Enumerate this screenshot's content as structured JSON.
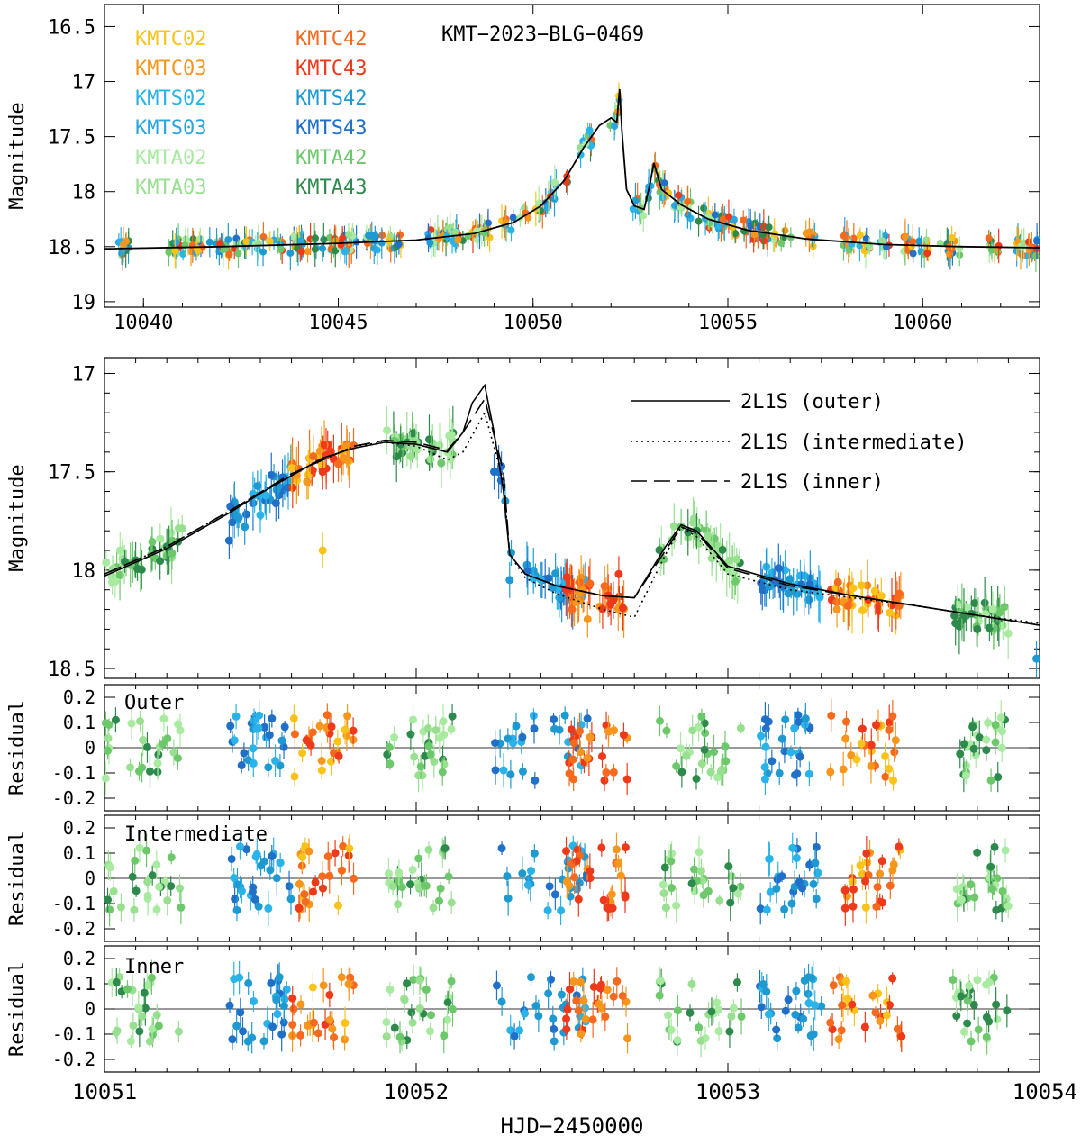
{
  "chart_data": [
    {
      "type": "scatter",
      "panel": "overview",
      "title": "KMT−2023−BLG−0469",
      "ylabel": "Magnitude",
      "xlim": [
        10039,
        10063
      ],
      "ylim_inverted": [
        16.3,
        19.05
      ],
      "x_ticks": [
        10040,
        10045,
        10050,
        10055,
        10060
      ],
      "y_ticks": [
        16.5,
        17,
        17.5,
        18,
        18.5,
        19
      ],
      "legend": [
        {
          "name": "KMTC02",
          "color": "#F9C31A"
        },
        {
          "name": "KMTC03",
          "color": "#F7961C"
        },
        {
          "name": "KMTS02",
          "color": "#2AB3E8"
        },
        {
          "name": "KMTS03",
          "color": "#29A6E0"
        },
        {
          "name": "KMTA02",
          "color": "#A8EAA0"
        },
        {
          "name": "KMTA03",
          "color": "#98E090"
        },
        {
          "name": "KMTC42",
          "color": "#F56A1E"
        },
        {
          "name": "KMTC43",
          "color": "#EE3A1A"
        },
        {
          "name": "KMTS42",
          "color": "#1F9AD0"
        },
        {
          "name": "KMTS43",
          "color": "#2070C8"
        },
        {
          "name": "KMTA42",
          "color": "#6CC86A"
        },
        {
          "name": "KMTA43",
          "color": "#2E8A4C"
        }
      ],
      "model_outer": {
        "x": [
          10039,
          10042,
          10045,
          10047,
          10048.5,
          10049.5,
          10050.2,
          10050.8,
          10051.3,
          10051.7,
          10052.0,
          10052.15,
          10052.22,
          10052.28,
          10052.4,
          10052.6,
          10052.85,
          10053.0,
          10053.1,
          10053.3,
          10053.8,
          10054.5,
          10055.5,
          10057,
          10059,
          10061,
          10063
        ],
        "y": [
          18.52,
          18.5,
          18.47,
          18.44,
          18.38,
          18.28,
          18.13,
          17.9,
          17.6,
          17.4,
          17.33,
          17.37,
          17.07,
          17.45,
          17.98,
          18.13,
          18.16,
          17.93,
          17.74,
          17.98,
          18.12,
          18.25,
          18.35,
          18.43,
          18.48,
          18.5,
          18.51
        ]
      }
    },
    {
      "type": "scatter",
      "panel": "zoom",
      "ylabel": "Magnitude",
      "xlim": [
        10051,
        10054
      ],
      "ylim_inverted": [
        16.92,
        18.55
      ],
      "y_ticks": [
        17,
        17.5,
        18,
        18.5
      ],
      "legend_lines": [
        {
          "label": "2L1S (outer)",
          "style": "solid"
        },
        {
          "label": "2L1S (intermediate)",
          "style": "dotted"
        },
        {
          "label": "2L1S (inner)",
          "style": "dashed"
        }
      ],
      "series": [
        {
          "name": "2L1S (outer)",
          "x": [
            10051.0,
            10051.1,
            10051.2,
            10051.3,
            10051.4,
            10051.5,
            10051.6,
            10051.7,
            10051.8,
            10051.9,
            10052.0,
            10052.1,
            10052.15,
            10052.18,
            10052.22,
            10052.25,
            10052.28,
            10052.3,
            10052.35,
            10052.45,
            10052.6,
            10052.7,
            10052.8,
            10052.85,
            10052.9,
            10053.0,
            10053.2,
            10053.4,
            10053.6,
            10053.8,
            10054.0
          ],
          "y": [
            18.03,
            17.96,
            17.89,
            17.8,
            17.71,
            17.61,
            17.52,
            17.43,
            17.38,
            17.35,
            17.36,
            17.4,
            17.3,
            17.15,
            17.06,
            17.3,
            17.6,
            17.92,
            18.02,
            18.08,
            18.13,
            18.14,
            17.88,
            17.77,
            17.8,
            17.98,
            18.07,
            18.13,
            18.18,
            18.23,
            18.28
          ]
        },
        {
          "name": "2L1S (intermediate)",
          "x": [
            10051.0,
            10051.2,
            10051.4,
            10051.6,
            10051.8,
            10051.9,
            10052.0,
            10052.1,
            10052.15,
            10052.22,
            10052.28,
            10052.3,
            10052.35,
            10052.45,
            10052.6,
            10052.7,
            10052.8,
            10052.85,
            10052.9,
            10053.0,
            10053.2,
            10053.4,
            10053.6,
            10053.8,
            10054.0
          ],
          "y": [
            18.02,
            17.88,
            17.7,
            17.51,
            17.37,
            17.35,
            17.37,
            17.44,
            17.4,
            17.2,
            17.55,
            17.92,
            18.04,
            18.12,
            18.2,
            18.24,
            17.92,
            17.78,
            17.83,
            18.02,
            18.1,
            18.14,
            18.18,
            18.23,
            18.27
          ]
        },
        {
          "name": "2L1S (inner)",
          "x": [
            10051.0,
            10051.2,
            10051.4,
            10051.6,
            10051.8,
            10051.9,
            10052.0,
            10052.1,
            10052.15,
            10052.22,
            10052.28,
            10052.3,
            10052.35,
            10052.45,
            10052.6,
            10052.7,
            10052.8,
            10052.85,
            10052.9,
            10053.0,
            10053.2,
            10053.4,
            10053.6,
            10053.8,
            10054.0
          ],
          "y": [
            18.02,
            17.88,
            17.7,
            17.51,
            17.37,
            17.34,
            17.35,
            17.39,
            17.3,
            17.13,
            17.5,
            17.92,
            18.02,
            18.08,
            18.13,
            18.14,
            17.9,
            17.78,
            17.81,
            17.99,
            18.08,
            18.13,
            18.18,
            18.23,
            18.28
          ]
        }
      ],
      "points": [
        {
          "x": 10051.05,
          "y": 17.9,
          "c": "#A8EAA0"
        },
        {
          "x": 10051.1,
          "y": 17.95,
          "c": "#2E8A4C"
        },
        {
          "x": 10051.15,
          "y": 17.92,
          "c": "#6CC86A"
        },
        {
          "x": 10051.2,
          "y": 17.88,
          "c": "#2E8A4C"
        },
        {
          "x": 10051.4,
          "y": 17.85,
          "c": "#2070C8"
        },
        {
          "x": 10051.45,
          "y": 17.78,
          "c": "#1F9AD0"
        },
        {
          "x": 10051.5,
          "y": 17.72,
          "c": "#2AB3E8"
        },
        {
          "x": 10051.55,
          "y": 17.66,
          "c": "#2070C8"
        },
        {
          "x": 10051.65,
          "y": 17.55,
          "c": "#F7961C"
        },
        {
          "x": 10051.7,
          "y": 17.5,
          "c": "#EE3A1A"
        },
        {
          "x": 10051.75,
          "y": 17.46,
          "c": "#F56A1E"
        },
        {
          "x": 10051.7,
          "y": 17.9,
          "c": "#F9C31A"
        },
        {
          "x": 10051.95,
          "y": 17.36,
          "c": "#2E8A4C"
        },
        {
          "x": 10052.0,
          "y": 17.35,
          "c": "#98E090"
        },
        {
          "x": 10052.05,
          "y": 17.38,
          "c": "#6CC86A"
        },
        {
          "x": 10052.1,
          "y": 17.4,
          "c": "#A8EAA0"
        },
        {
          "x": 10052.25,
          "y": 17.5,
          "c": "#2070C8"
        },
        {
          "x": 10052.3,
          "y": 18.05,
          "c": "#1F9AD0"
        },
        {
          "x": 10052.4,
          "y": 18.05,
          "c": "#2AB3E8"
        },
        {
          "x": 10052.5,
          "y": 18.2,
          "c": "#F56A1E"
        },
        {
          "x": 10052.55,
          "y": 18.25,
          "c": "#F7961C"
        },
        {
          "x": 10052.65,
          "y": 18.02,
          "c": "#EE3A1A"
        },
        {
          "x": 10052.85,
          "y": 17.78,
          "c": "#6CC86A"
        },
        {
          "x": 10052.9,
          "y": 17.8,
          "c": "#2E8A4C"
        },
        {
          "x": 10052.95,
          "y": 17.9,
          "c": "#98E090"
        },
        {
          "x": 10053.15,
          "y": 18.05,
          "c": "#2070C8"
        },
        {
          "x": 10053.25,
          "y": 18.1,
          "c": "#2AB3E8"
        },
        {
          "x": 10053.35,
          "y": 18.2,
          "c": "#F7961C"
        },
        {
          "x": 10053.45,
          "y": 18.15,
          "c": "#EE3A1A"
        },
        {
          "x": 10053.55,
          "y": 18.12,
          "c": "#F56A1E"
        },
        {
          "x": 10053.8,
          "y": 18.3,
          "c": "#2E8A4C"
        },
        {
          "x": 10053.85,
          "y": 18.2,
          "c": "#A8EAA0"
        },
        {
          "x": 10053.99,
          "y": 18.45,
          "c": "#1F9AD0"
        }
      ]
    },
    {
      "type": "scatter",
      "panel": "residual",
      "label": "Outer",
      "ylabel": "Residual",
      "xlim": [
        10051,
        10054
      ],
      "ylim_inverted": [
        -0.25,
        0.25
      ],
      "y_ticks": [
        0.2,
        0.1,
        0,
        -0.1,
        -0.2
      ]
    },
    {
      "type": "scatter",
      "panel": "residual",
      "label": "Intermediate",
      "ylabel": "Residual",
      "xlim": [
        10051,
        10054
      ],
      "ylim_inverted": [
        -0.25,
        0.25
      ],
      "y_ticks": [
        0.2,
        0.1,
        0,
        -0.1,
        -0.2
      ]
    },
    {
      "type": "scatter",
      "panel": "residual",
      "label": "Inner",
      "ylabel": "Residual",
      "xlabel": "HJD−2450000",
      "xlim": [
        10051,
        10054
      ],
      "ylim_inverted": [
        -0.25,
        0.25
      ],
      "y_ticks": [
        0.2,
        0.1,
        0,
        -0.1,
        -0.2
      ],
      "x_ticks": [
        10051,
        10052,
        10053,
        10054
      ]
    }
  ]
}
